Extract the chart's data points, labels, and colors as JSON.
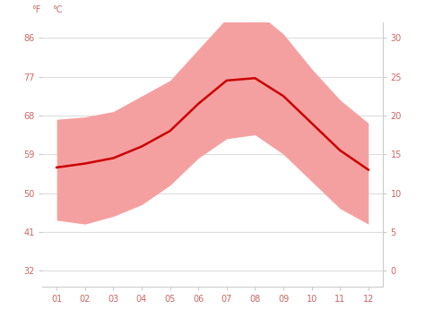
{
  "months": [
    1,
    2,
    3,
    4,
    5,
    6,
    7,
    8,
    9,
    10,
    11,
    12
  ],
  "avg_temp_c": [
    13.3,
    13.8,
    14.5,
    16.0,
    18.0,
    21.5,
    24.5,
    24.8,
    22.5,
    19.0,
    15.5,
    13.0
  ],
  "max_temp_c": [
    19.5,
    19.8,
    20.5,
    22.5,
    24.5,
    28.5,
    32.5,
    33.5,
    30.5,
    26.0,
    22.0,
    19.0
  ],
  "min_temp_c": [
    6.5,
    6.0,
    7.0,
    8.5,
    11.0,
    14.5,
    17.0,
    17.5,
    15.0,
    11.5,
    8.0,
    6.0
  ],
  "yticks_c": [
    0,
    5,
    10,
    15,
    20,
    25,
    30
  ],
  "yticks_f": [
    32,
    41,
    50,
    59,
    68,
    77,
    86
  ],
  "xlim": [
    0.5,
    12.5
  ],
  "ylim_c": [
    -2,
    32
  ],
  "band_color": "#f5a0a0",
  "line_color": "#cc0000",
  "bg_color": "#ffffff",
  "grid_color": "#dddddd",
  "tick_color": "#cc6666",
  "axis_color": "#cccccc",
  "label_fontsize": 7,
  "tick_fontsize": 7
}
